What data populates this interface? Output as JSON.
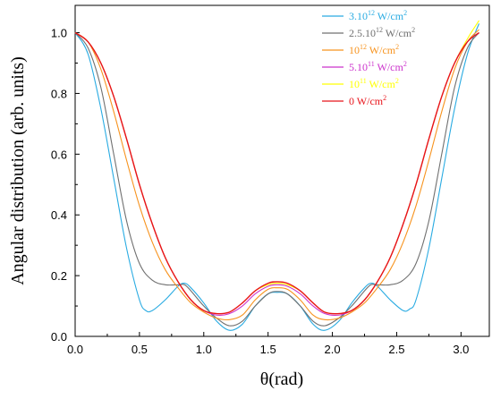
{
  "chart_data": {
    "type": "line",
    "xlabel": "θ(rad)",
    "ylabel": "Angular distribution (arb. units)",
    "xlim": [
      0,
      3.22
    ],
    "ylim": [
      0,
      1.09
    ],
    "x_ticks": [
      "0.0",
      "0.5",
      "1.0",
      "1.5",
      "2.0",
      "2.5",
      "3.0"
    ],
    "y_ticks": [
      "0.0",
      "0.2",
      "0.4",
      "0.6",
      "0.8",
      "1.0"
    ],
    "legend_position": "top-right",
    "series": [
      {
        "name": "3.10",
        "sup": "12",
        "unit": " W/cm",
        "unit_sup": "2",
        "color": "#29abe2",
        "points": [
          [
            0,
            1.0
          ],
          [
            0.1,
            0.93
          ],
          [
            0.2,
            0.75
          ],
          [
            0.3,
            0.52
          ],
          [
            0.4,
            0.29
          ],
          [
            0.5,
            0.12
          ],
          [
            0.55,
            0.085
          ],
          [
            0.6,
            0.085
          ],
          [
            0.7,
            0.12
          ],
          [
            0.8,
            0.165
          ],
          [
            0.85,
            0.175
          ],
          [
            0.9,
            0.16
          ],
          [
            1.0,
            0.11
          ],
          [
            1.1,
            0.05
          ],
          [
            1.2,
            0.02
          ],
          [
            1.3,
            0.04
          ],
          [
            1.4,
            0.1
          ],
          [
            1.5,
            0.14
          ],
          [
            1.57,
            0.145
          ],
          [
            1.65,
            0.14
          ],
          [
            1.75,
            0.1
          ],
          [
            1.85,
            0.04
          ],
          [
            1.94,
            0.02
          ],
          [
            2.05,
            0.05
          ],
          [
            2.15,
            0.11
          ],
          [
            2.25,
            0.16
          ],
          [
            2.3,
            0.175
          ],
          [
            2.35,
            0.165
          ],
          [
            2.45,
            0.12
          ],
          [
            2.55,
            0.085
          ],
          [
            2.6,
            0.09
          ],
          [
            2.65,
            0.12
          ],
          [
            2.75,
            0.29
          ],
          [
            2.85,
            0.52
          ],
          [
            2.95,
            0.75
          ],
          [
            3.05,
            0.93
          ],
          [
            3.14,
            1.03
          ]
        ]
      },
      {
        "name": "2.5.10",
        "sup": "12",
        "unit": " W/cm",
        "unit_sup": "2",
        "color": "#707070",
        "points": [
          [
            0,
            1.0
          ],
          [
            0.1,
            0.95
          ],
          [
            0.2,
            0.82
          ],
          [
            0.3,
            0.6
          ],
          [
            0.4,
            0.38
          ],
          [
            0.5,
            0.24
          ],
          [
            0.6,
            0.185
          ],
          [
            0.7,
            0.17
          ],
          [
            0.8,
            0.17
          ],
          [
            0.85,
            0.17
          ],
          [
            0.9,
            0.15
          ],
          [
            1.0,
            0.1
          ],
          [
            1.1,
            0.06
          ],
          [
            1.2,
            0.035
          ],
          [
            1.3,
            0.05
          ],
          [
            1.4,
            0.1
          ],
          [
            1.5,
            0.14
          ],
          [
            1.57,
            0.148
          ],
          [
            1.65,
            0.14
          ],
          [
            1.75,
            0.1
          ],
          [
            1.85,
            0.05
          ],
          [
            1.94,
            0.035
          ],
          [
            2.05,
            0.06
          ],
          [
            2.15,
            0.1
          ],
          [
            2.25,
            0.15
          ],
          [
            2.3,
            0.17
          ],
          [
            2.35,
            0.17
          ],
          [
            2.45,
            0.17
          ],
          [
            2.55,
            0.185
          ],
          [
            2.65,
            0.24
          ],
          [
            2.75,
            0.38
          ],
          [
            2.85,
            0.6
          ],
          [
            2.95,
            0.82
          ],
          [
            3.05,
            0.95
          ],
          [
            3.14,
            1.0
          ]
        ]
      },
      {
        "name": "10",
        "sup": "12",
        "unit": " W/cm",
        "unit_sup": "2",
        "color": "#f7931e",
        "points": [
          [
            0,
            1.0
          ],
          [
            0.1,
            0.97
          ],
          [
            0.2,
            0.88
          ],
          [
            0.3,
            0.74
          ],
          [
            0.4,
            0.58
          ],
          [
            0.5,
            0.43
          ],
          [
            0.6,
            0.31
          ],
          [
            0.7,
            0.22
          ],
          [
            0.8,
            0.16
          ],
          [
            0.9,
            0.11
          ],
          [
            1.0,
            0.08
          ],
          [
            1.1,
            0.06
          ],
          [
            1.2,
            0.055
          ],
          [
            1.3,
            0.07
          ],
          [
            1.4,
            0.12
          ],
          [
            1.5,
            0.155
          ],
          [
            1.57,
            0.16
          ],
          [
            1.65,
            0.155
          ],
          [
            1.75,
            0.12
          ],
          [
            1.85,
            0.07
          ],
          [
            1.94,
            0.055
          ],
          [
            2.05,
            0.06
          ],
          [
            2.15,
            0.08
          ],
          [
            2.25,
            0.11
          ],
          [
            2.35,
            0.16
          ],
          [
            2.45,
            0.22
          ],
          [
            2.55,
            0.31
          ],
          [
            2.65,
            0.43
          ],
          [
            2.75,
            0.58
          ],
          [
            2.85,
            0.74
          ],
          [
            2.95,
            0.88
          ],
          [
            3.05,
            0.97
          ],
          [
            3.14,
            1.01
          ]
        ]
      },
      {
        "name": "5.10",
        "sup": "11",
        "unit": " W/cm",
        "unit_sup": "2",
        "color": "#cc33cc",
        "points": [
          [
            0,
            1.0
          ],
          [
            0.1,
            0.97
          ],
          [
            0.2,
            0.9
          ],
          [
            0.3,
            0.79
          ],
          [
            0.4,
            0.65
          ],
          [
            0.5,
            0.5
          ],
          [
            0.6,
            0.37
          ],
          [
            0.7,
            0.26
          ],
          [
            0.8,
            0.18
          ],
          [
            0.9,
            0.12
          ],
          [
            1.0,
            0.085
          ],
          [
            1.1,
            0.07
          ],
          [
            1.2,
            0.075
          ],
          [
            1.3,
            0.1
          ],
          [
            1.4,
            0.14
          ],
          [
            1.5,
            0.165
          ],
          [
            1.57,
            0.17
          ],
          [
            1.65,
            0.165
          ],
          [
            1.75,
            0.14
          ],
          [
            1.85,
            0.1
          ],
          [
            1.94,
            0.075
          ],
          [
            2.05,
            0.07
          ],
          [
            2.15,
            0.085
          ],
          [
            2.25,
            0.12
          ],
          [
            2.35,
            0.18
          ],
          [
            2.45,
            0.26
          ],
          [
            2.55,
            0.37
          ],
          [
            2.65,
            0.5
          ],
          [
            2.75,
            0.65
          ],
          [
            2.85,
            0.79
          ],
          [
            2.95,
            0.9
          ],
          [
            3.05,
            0.97
          ],
          [
            3.14,
            1.0
          ]
        ]
      },
      {
        "name": "10",
        "sup": "11",
        "unit": " W/cm",
        "unit_sup": "2",
        "color": "#ffff00",
        "points": [
          [
            0,
            1.0
          ],
          [
            0.1,
            0.97
          ],
          [
            0.2,
            0.9
          ],
          [
            0.3,
            0.79
          ],
          [
            0.4,
            0.65
          ],
          [
            0.5,
            0.5
          ],
          [
            0.6,
            0.37
          ],
          [
            0.7,
            0.26
          ],
          [
            0.8,
            0.18
          ],
          [
            0.9,
            0.12
          ],
          [
            1.0,
            0.085
          ],
          [
            1.1,
            0.075
          ],
          [
            1.2,
            0.08
          ],
          [
            1.3,
            0.11
          ],
          [
            1.4,
            0.15
          ],
          [
            1.5,
            0.17
          ],
          [
            1.57,
            0.175
          ],
          [
            1.65,
            0.17
          ],
          [
            1.75,
            0.15
          ],
          [
            1.85,
            0.11
          ],
          [
            1.94,
            0.08
          ],
          [
            2.05,
            0.075
          ],
          [
            2.15,
            0.085
          ],
          [
            2.25,
            0.12
          ],
          [
            2.35,
            0.18
          ],
          [
            2.45,
            0.26
          ],
          [
            2.55,
            0.37
          ],
          [
            2.65,
            0.5
          ],
          [
            2.75,
            0.65
          ],
          [
            2.85,
            0.79
          ],
          [
            2.95,
            0.9
          ],
          [
            3.05,
            0.98
          ],
          [
            3.14,
            1.04
          ]
        ]
      },
      {
        "name": "0 W/cm",
        "sup": "",
        "unit": "",
        "unit_sup": "2",
        "color": "#e8141b",
        "points": [
          [
            0,
            1.0
          ],
          [
            0.1,
            0.97
          ],
          [
            0.2,
            0.9
          ],
          [
            0.3,
            0.79
          ],
          [
            0.4,
            0.65
          ],
          [
            0.5,
            0.5
          ],
          [
            0.6,
            0.37
          ],
          [
            0.7,
            0.26
          ],
          [
            0.8,
            0.18
          ],
          [
            0.9,
            0.12
          ],
          [
            1.0,
            0.085
          ],
          [
            1.1,
            0.075
          ],
          [
            1.2,
            0.08
          ],
          [
            1.3,
            0.11
          ],
          [
            1.4,
            0.15
          ],
          [
            1.5,
            0.175
          ],
          [
            1.57,
            0.18
          ],
          [
            1.65,
            0.175
          ],
          [
            1.75,
            0.15
          ],
          [
            1.85,
            0.11
          ],
          [
            1.94,
            0.08
          ],
          [
            2.05,
            0.075
          ],
          [
            2.15,
            0.085
          ],
          [
            2.25,
            0.12
          ],
          [
            2.35,
            0.18
          ],
          [
            2.45,
            0.26
          ],
          [
            2.55,
            0.37
          ],
          [
            2.65,
            0.5
          ],
          [
            2.75,
            0.65
          ],
          [
            2.85,
            0.79
          ],
          [
            2.95,
            0.9
          ],
          [
            3.05,
            0.97
          ],
          [
            3.14,
            1.0
          ]
        ]
      }
    ]
  }
}
